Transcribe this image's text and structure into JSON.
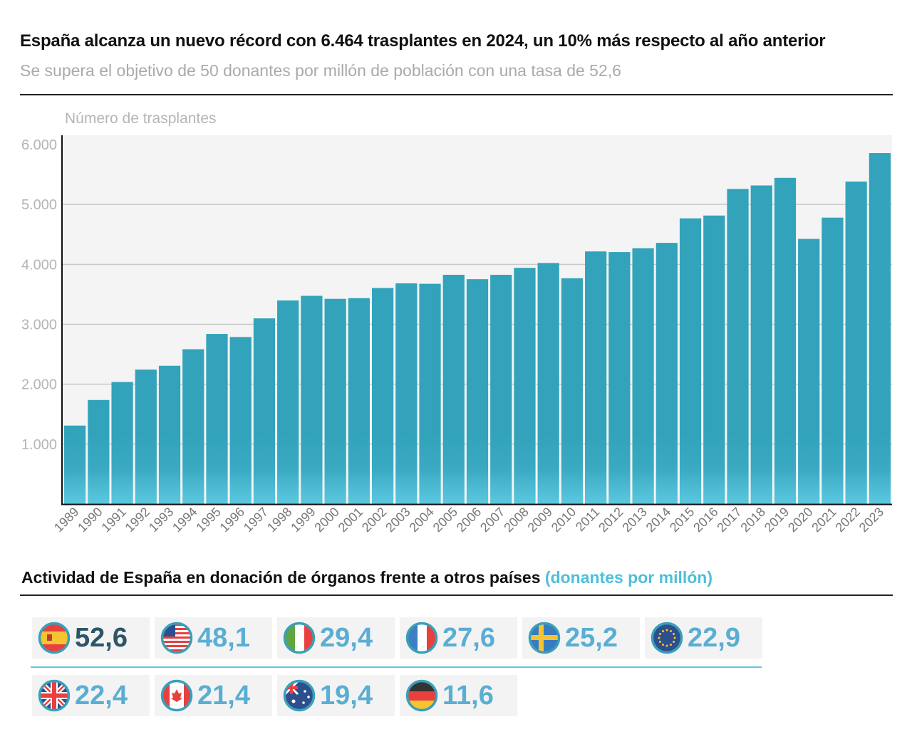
{
  "header": {
    "title": "España alcanza un nuevo récord con 6.464 trasplantes en 2024, un 10% más respecto al año anterior",
    "subtitle": "Se supera el objetivo de 50 donantes por millón de población con una tasa de 52,6"
  },
  "chart_data": {
    "type": "bar",
    "ylabel": "Número de trasplantes",
    "ylim": [
      0,
      6000
    ],
    "yticks": [
      "1.000",
      "2.000",
      "3.000",
      "4.000",
      "5.000",
      "6.000"
    ],
    "ytick_values": [
      1000,
      2000,
      3000,
      4000,
      5000,
      6000
    ],
    "grid": true,
    "bar_color": "#32a3ba",
    "categories": [
      "1989",
      "1990",
      "1991",
      "1992",
      "1993",
      "1994",
      "1995",
      "1996",
      "1997",
      "1998",
      "1999",
      "2000",
      "2001",
      "2002",
      "2003",
      "2004",
      "2005",
      "2006",
      "2007",
      "2008",
      "2009",
      "2010",
      "2011",
      "2012",
      "2013",
      "2014",
      "2015",
      "2016",
      "2017",
      "2018",
      "2019",
      "2020",
      "2021",
      "2022",
      "2023"
    ],
    "values": [
      1310,
      1737,
      2037,
      2244,
      2308,
      2584,
      2839,
      2788,
      3099,
      3398,
      3475,
      3425,
      3436,
      3606,
      3683,
      3676,
      3826,
      3753,
      3826,
      3942,
      4023,
      3768,
      4216,
      4205,
      4270,
      4359,
      4768,
      4815,
      5259,
      5317,
      5444,
      4425,
      4780,
      5382,
      5857
    ]
  },
  "comparison": {
    "title": "Actividad de España en donación de órganos frente a otros países",
    "title_accent": "(donantes por millón)",
    "accent_color": "#4fbfd9",
    "countries": [
      {
        "flag": "spain-flag-icon",
        "value": "52,6"
      },
      {
        "flag": "usa-flag-icon",
        "value": "48,1"
      },
      {
        "flag": "italy-flag-icon",
        "value": "29,4"
      },
      {
        "flag": "france-flag-icon",
        "value": "27,6"
      },
      {
        "flag": "sweden-flag-icon",
        "value": "25,2"
      },
      {
        "flag": "eu-flag-icon",
        "value": "22,9"
      },
      {
        "flag": "uk-flag-icon",
        "value": "22,4"
      },
      {
        "flag": "canada-flag-icon",
        "value": "21,4"
      },
      {
        "flag": "australia-flag-icon",
        "value": "19,4"
      },
      {
        "flag": "germany-flag-icon",
        "value": "11,6"
      }
    ]
  }
}
